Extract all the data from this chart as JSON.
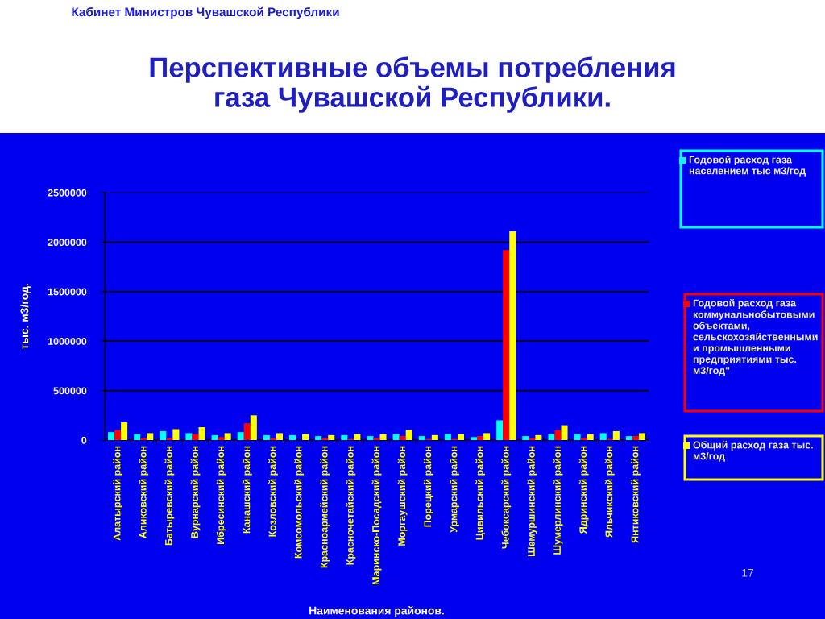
{
  "chart_data": {
    "type": "bar",
    "title": "Перспективные объемы потребления\nгаза Чувашской Республики.",
    "xlabel": "Наименования районов.",
    "ylabel": "тыс. м3/год.",
    "annotations": [
      "Кабинет Министров Чувашской Республики",
      "17"
    ],
    "categories": [
      "Алатырский район",
      "Аликовский район",
      "Батыревский район",
      "Вурнарский район",
      "Ибресинский район",
      "Канашский район",
      "Козловский район",
      "Комсомольский район",
      "Красноармейский район",
      "Красночетайский район",
      "Маринско-Посадский район",
      "Моргаушский район",
      "Порецкий район",
      "Урмарский район",
      "Цивильский район",
      "Чебоксарский район",
      "Шемуршинский район",
      "Шумерлинский район",
      "Ядринский район",
      "Яльчикский район",
      "Янтиковский район"
    ],
    "series": [
      {
        "name": "Годовой расход газа населением тыс м3/год",
        "color": "#00ffff",
        "values": [
          80000,
          60000,
          90000,
          70000,
          50000,
          80000,
          50000,
          50000,
          40000,
          50000,
          40000,
          60000,
          40000,
          60000,
          30000,
          200000,
          40000,
          60000,
          60000,
          70000,
          40000
        ]
      },
      {
        "name": "Годовой расход газа коммунальнобытовыми объектами, сельскохозяйственными и промышленными предприятиями тыс. м3/год\"",
        "color": "#ff0000",
        "values": [
          100000,
          20000,
          20000,
          60000,
          30000,
          170000,
          20000,
          null,
          20000,
          10000,
          20000,
          40000,
          10000,
          10000,
          40000,
          1920000,
          20000,
          100000,
          20000,
          10000,
          40000
        ]
      },
      {
        "name": "Общий расход газа тыс. м3/год",
        "color": "#ffff00",
        "values": [
          180000,
          70000,
          110000,
          130000,
          70000,
          250000,
          70000,
          60000,
          50000,
          60000,
          60000,
          100000,
          50000,
          60000,
          70000,
          2110000,
          50000,
          150000,
          60000,
          90000,
          70000
        ]
      }
    ],
    "ylim": [
      0,
      2500000
    ],
    "yticks": [
      0,
      500000,
      1000000,
      1500000,
      2000000,
      2500000
    ],
    "grid": "y",
    "legend": "right"
  }
}
